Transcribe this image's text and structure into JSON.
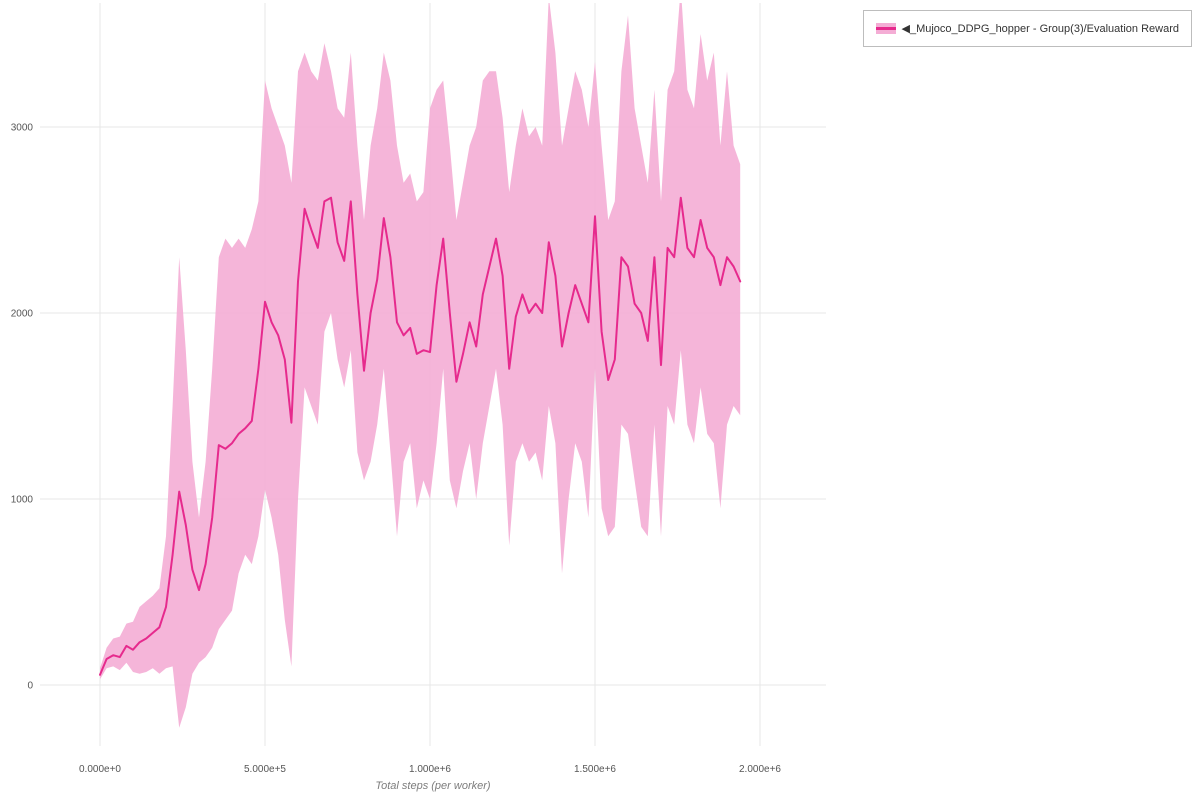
{
  "page": {
    "background": "#ffffff"
  },
  "legend": {
    "collapse_icon": "◀",
    "label": "_Mujoco_DDPG_hopper - Group(3)/Evaluation Reward"
  },
  "colors": {
    "line": "#e62a8d",
    "band": "#f4add5",
    "grid": "#e7e7e7",
    "tick_text": "#555555",
    "axis_label_text": "#7d7d7d"
  },
  "axes": {
    "x_label": "Total steps (per worker)",
    "x_ticks": [
      {
        "value": 0,
        "label": "0.000e+0"
      },
      {
        "value": 500000,
        "label": "5.000e+5"
      },
      {
        "value": 1000000,
        "label": "1.000e+6"
      },
      {
        "value": 1500000,
        "label": "1.500e+6"
      },
      {
        "value": 2000000,
        "label": "2.000e+6"
      }
    ],
    "y_ticks": [
      {
        "value": 0,
        "label": "0"
      },
      {
        "value": 1000,
        "label": "1000"
      },
      {
        "value": 2000,
        "label": "2000"
      },
      {
        "value": 3000,
        "label": "3000"
      }
    ]
  },
  "chart_data": {
    "type": "line",
    "title": "",
    "xlabel": "Total steps (per worker)",
    "ylabel": "",
    "xlim": [
      -180000,
      2200000
    ],
    "ylim": [
      -320,
      3650
    ],
    "grid": true,
    "legend_position": "top-right",
    "series": [
      {
        "name": "_Mujoco_DDPG_hopper - Group(3)/Evaluation Reward",
        "x": [
          0,
          20000,
          40000,
          60000,
          80000,
          100000,
          120000,
          140000,
          160000,
          180000,
          200000,
          220000,
          240000,
          260000,
          280000,
          300000,
          320000,
          340000,
          360000,
          380000,
          400000,
          420000,
          440000,
          460000,
          480000,
          500000,
          520000,
          540000,
          560000,
          580000,
          600000,
          620000,
          640000,
          660000,
          680000,
          700000,
          720000,
          740000,
          760000,
          780000,
          800000,
          820000,
          840000,
          860000,
          880000,
          900000,
          920000,
          940000,
          960000,
          980000,
          1000000,
          1020000,
          1040000,
          1060000,
          1080000,
          1100000,
          1120000,
          1140000,
          1160000,
          1180000,
          1200000,
          1220000,
          1240000,
          1260000,
          1280000,
          1300000,
          1320000,
          1340000,
          1360000,
          1380000,
          1400000,
          1420000,
          1440000,
          1460000,
          1480000,
          1500000,
          1520000,
          1540000,
          1560000,
          1580000,
          1600000,
          1620000,
          1640000,
          1660000,
          1680000,
          1700000,
          1720000,
          1740000,
          1760000,
          1780000,
          1800000,
          1820000,
          1840000,
          1860000,
          1880000,
          1900000,
          1920000,
          1940000
        ],
        "mean": [
          55,
          140,
          160,
          150,
          210,
          190,
          230,
          250,
          280,
          310,
          420,
          700,
          1040,
          860,
          620,
          510,
          650,
          900,
          1290,
          1270,
          1300,
          1350,
          1380,
          1420,
          1700,
          2060,
          1950,
          1880,
          1750,
          1410,
          2170,
          2560,
          2450,
          2350,
          2600,
          2620,
          2380,
          2280,
          2600,
          2100,
          1690,
          2000,
          2180,
          2510,
          2300,
          1950,
          1880,
          1920,
          1780,
          1800,
          1790,
          2150,
          2400,
          2000,
          1630,
          1780,
          1950,
          1820,
          2100,
          2250,
          2400,
          2200,
          1700,
          1980,
          2100,
          2000,
          2050,
          2000,
          2380,
          2200,
          1820,
          2000,
          2150,
          2050,
          1950,
          2520,
          1900,
          1640,
          1750,
          2300,
          2250,
          2050,
          2000,
          1850,
          2300,
          1720,
          2350,
          2300,
          2620,
          2350,
          2300,
          2500,
          2350,
          2300,
          2150,
          2300,
          2250,
          2170
        ],
        "lower": [
          30,
          90,
          100,
          80,
          120,
          70,
          60,
          70,
          90,
          60,
          90,
          100,
          -230,
          -120,
          60,
          120,
          150,
          200,
          300,
          350,
          400,
          600,
          700,
          650,
          800,
          1050,
          900,
          700,
          350,
          100,
          1000,
          1600,
          1500,
          1400,
          1900,
          2000,
          1750,
          1600,
          1800,
          1250,
          1100,
          1200,
          1400,
          1700,
          1250,
          800,
          1200,
          1300,
          950,
          1100,
          1000,
          1300,
          1700,
          1100,
          950,
          1150,
          1300,
          1000,
          1300,
          1500,
          1700,
          1400,
          750,
          1200,
          1300,
          1200,
          1250,
          1100,
          1500,
          1300,
          600,
          1000,
          1300,
          1200,
          900,
          1700,
          950,
          800,
          850,
          1400,
          1350,
          1100,
          850,
          800,
          1400,
          800,
          1500,
          1400,
          1800,
          1400,
          1300,
          1600,
          1350,
          1300,
          950,
          1400,
          1500,
          1450
        ],
        "upper": [
          90,
          200,
          250,
          260,
          330,
          340,
          420,
          450,
          480,
          520,
          800,
          1500,
          2300,
          1800,
          1200,
          900,
          1200,
          1700,
          2300,
          2400,
          2350,
          2400,
          2350,
          2450,
          2600,
          3250,
          3100,
          3000,
          2900,
          2700,
          3300,
          3400,
          3300,
          3250,
          3450,
          3300,
          3100,
          3050,
          3400,
          2900,
          2500,
          2900,
          3100,
          3400,
          3250,
          2900,
          2700,
          2750,
          2600,
          2650,
          3100,
          3200,
          3250,
          2900,
          2500,
          2700,
          2900,
          3000,
          3250,
          3300,
          3300,
          3050,
          2650,
          2900,
          3100,
          2950,
          3000,
          2900,
          3700,
          3400,
          2900,
          3100,
          3300,
          3200,
          3000,
          3350,
          2900,
          2500,
          2600,
          3300,
          3600,
          3100,
          2900,
          2700,
          3200,
          2600,
          3200,
          3300,
          3750,
          3200,
          3100,
          3500,
          3250,
          3400,
          2900,
          3300,
          2900,
          2800
        ]
      }
    ]
  }
}
